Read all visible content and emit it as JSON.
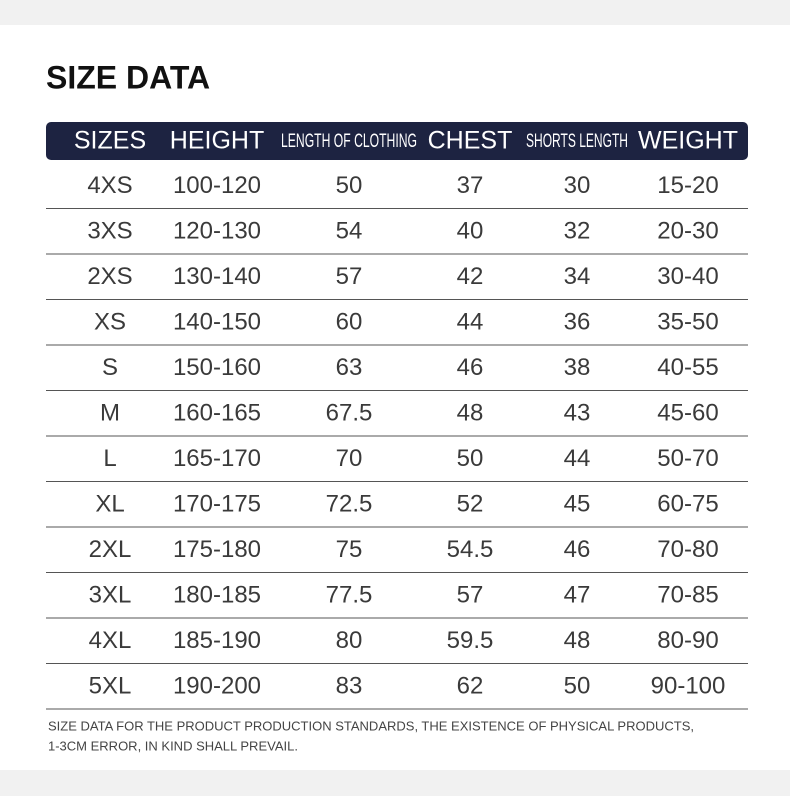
{
  "title": "SIZE DATA",
  "table": {
    "header": [
      "SIZES",
      "HEIGHT",
      "LENGTH OF CLOTHING",
      "CHEST",
      "SHORTS LENGTH",
      "WEIGHT"
    ],
    "rows": [
      [
        "4XS",
        "100-120",
        "50",
        "37",
        "30",
        "15-20"
      ],
      [
        "3XS",
        "120-130",
        "54",
        "40",
        "32",
        "20-30"
      ],
      [
        "2XS",
        "130-140",
        "57",
        "42",
        "34",
        "30-40"
      ],
      [
        "XS",
        "140-150",
        "60",
        "44",
        "36",
        "35-50"
      ],
      [
        "S",
        "150-160",
        "63",
        "46",
        "38",
        "40-55"
      ],
      [
        "M",
        "160-165",
        "67.5",
        "48",
        "43",
        "45-60"
      ],
      [
        "L",
        "165-170",
        "70",
        "50",
        "44",
        "50-70"
      ],
      [
        "XL",
        "170-175",
        "72.5",
        "52",
        "45",
        "60-75"
      ],
      [
        "2XL",
        "175-180",
        "75",
        "54.5",
        "46",
        "70-80"
      ],
      [
        "3XL",
        "180-185",
        "77.5",
        "57",
        "47",
        "70-85"
      ],
      [
        "4XL",
        "185-190",
        "80",
        "59.5",
        "48",
        "80-90"
      ],
      [
        "5XL",
        "190-200",
        "83",
        "62",
        "50",
        "90-100"
      ]
    ]
  },
  "footnote": [
    "SIZE DATA FOR THE PRODUCT PRODUCTION STANDARDS, THE EXISTENCE OF PHYSICAL PRODUCTS,",
    "1-3CM ERROR, IN KIND SHALL PREVAIL."
  ]
}
